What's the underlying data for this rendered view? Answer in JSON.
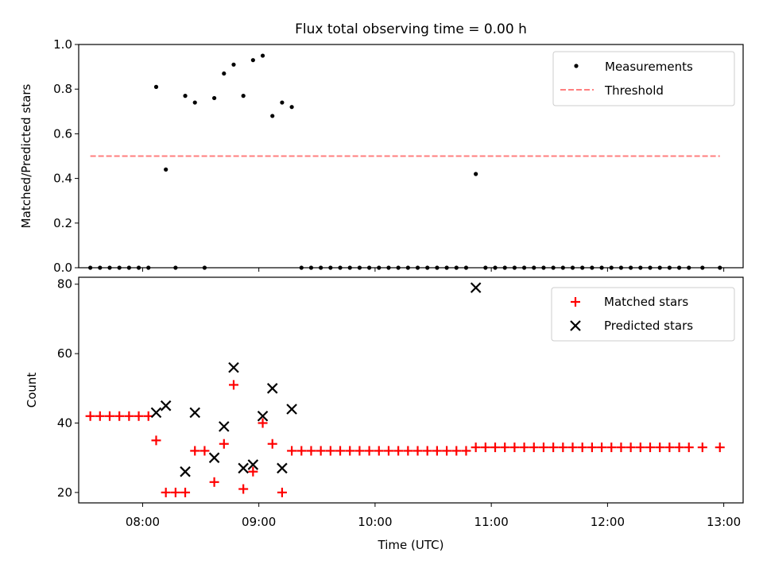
{
  "chart_data": [
    {
      "type": "scatter",
      "title": "Flux total observing time = 0.00 h",
      "xlabel": "",
      "ylabel": "Matched/Predicted stars",
      "xlim": [
        "07:27",
        "13:10"
      ],
      "ylim": [
        0,
        1.0
      ],
      "yticks": [
        0.0,
        0.2,
        0.4,
        0.6,
        0.8,
        1.0
      ],
      "ytick_labels": [
        "0.0",
        "0.2",
        "0.4",
        "0.6",
        "0.8",
        "1.0"
      ],
      "xticks": [
        "08:00",
        "09:00",
        "10:00",
        "11:00",
        "12:00",
        "13:00"
      ],
      "legend_position": "top-right",
      "grid": false,
      "series": [
        {
          "name": "Measurements",
          "marker": "dot",
          "color": "#000000",
          "points": [
            [
              "07:33",
              0
            ],
            [
              "07:38",
              0
            ],
            [
              "07:43",
              0
            ],
            [
              "07:48",
              0
            ],
            [
              "07:53",
              0
            ],
            [
              "07:58",
              0
            ],
            [
              "08:03",
              0
            ],
            [
              "08:07",
              0.81
            ],
            [
              "08:12",
              0.44
            ],
            [
              "08:17",
              0
            ],
            [
              "08:22",
              0.77
            ],
            [
              "08:27",
              0.74
            ],
            [
              "08:32",
              0
            ],
            [
              "08:37",
              0.76
            ],
            [
              "08:42",
              0.87
            ],
            [
              "08:47",
              0.91
            ],
            [
              "08:52",
              0.77
            ],
            [
              "08:57",
              0.93
            ],
            [
              "09:02",
              0.95
            ],
            [
              "09:07",
              0.68
            ],
            [
              "09:12",
              0.74
            ],
            [
              "09:17",
              0.72
            ],
            [
              "09:22",
              0
            ],
            [
              "09:27",
              0
            ],
            [
              "09:32",
              0
            ],
            [
              "09:37",
              0
            ],
            [
              "09:42",
              0
            ],
            [
              "09:47",
              0
            ],
            [
              "09:52",
              0
            ],
            [
              "09:57",
              0
            ],
            [
              "10:02",
              0
            ],
            [
              "10:07",
              0
            ],
            [
              "10:12",
              0
            ],
            [
              "10:17",
              0
            ],
            [
              "10:22",
              0
            ],
            [
              "10:27",
              0
            ],
            [
              "10:32",
              0
            ],
            [
              "10:37",
              0
            ],
            [
              "10:42",
              0
            ],
            [
              "10:47",
              0
            ],
            [
              "10:52",
              0.42
            ],
            [
              "10:57",
              0
            ],
            [
              "11:02",
              0
            ],
            [
              "11:07",
              0
            ],
            [
              "11:12",
              0
            ],
            [
              "11:17",
              0
            ],
            [
              "11:22",
              0
            ],
            [
              "11:27",
              0
            ],
            [
              "11:32",
              0
            ],
            [
              "11:37",
              0
            ],
            [
              "11:42",
              0
            ],
            [
              "11:47",
              0
            ],
            [
              "11:52",
              0
            ],
            [
              "11:57",
              0
            ],
            [
              "12:02",
              0
            ],
            [
              "12:07",
              0
            ],
            [
              "12:12",
              0
            ],
            [
              "12:17",
              0
            ],
            [
              "12:22",
              0
            ],
            [
              "12:27",
              0
            ],
            [
              "12:32",
              0
            ],
            [
              "12:37",
              0
            ],
            [
              "12:42",
              0
            ],
            [
              "12:49",
              0
            ],
            [
              "12:58",
              0
            ]
          ]
        },
        {
          "name": "Threshold",
          "type": "line",
          "dashed": true,
          "color": "#ff7f7f",
          "points": [
            [
              "07:33",
              0.5
            ],
            [
              "12:58",
              0.5
            ]
          ]
        }
      ]
    },
    {
      "type": "scatter",
      "title": "",
      "xlabel": "Time (UTC)",
      "ylabel": "Count",
      "xlim": [
        "07:27",
        "13:10"
      ],
      "ylim": [
        17,
        82
      ],
      "yticks": [
        20,
        40,
        60,
        80
      ],
      "ytick_labels": [
        "20",
        "40",
        "60",
        "80"
      ],
      "xticks": [
        "08:00",
        "09:00",
        "10:00",
        "11:00",
        "12:00",
        "13:00"
      ],
      "legend_position": "top-right",
      "grid": false,
      "series": [
        {
          "name": "Matched stars",
          "marker": "plus",
          "color": "#ff0000",
          "points": [
            [
              "07:33",
              42
            ],
            [
              "07:38",
              42
            ],
            [
              "07:43",
              42
            ],
            [
              "07:48",
              42
            ],
            [
              "07:53",
              42
            ],
            [
              "07:58",
              42
            ],
            [
              "08:03",
              42
            ],
            [
              "08:07",
              35
            ],
            [
              "08:12",
              20
            ],
            [
              "08:17",
              20
            ],
            [
              "08:22",
              20
            ],
            [
              "08:27",
              32
            ],
            [
              "08:32",
              32
            ],
            [
              "08:37",
              23
            ],
            [
              "08:42",
              34
            ],
            [
              "08:47",
              51
            ],
            [
              "08:52",
              21
            ],
            [
              "08:57",
              26
            ],
            [
              "09:02",
              40
            ],
            [
              "09:07",
              34
            ],
            [
              "09:12",
              20
            ],
            [
              "09:17",
              32
            ],
            [
              "09:22",
              32
            ],
            [
              "09:27",
              32
            ],
            [
              "09:32",
              32
            ],
            [
              "09:37",
              32
            ],
            [
              "09:42",
              32
            ],
            [
              "09:47",
              32
            ],
            [
              "09:52",
              32
            ],
            [
              "09:57",
              32
            ],
            [
              "10:02",
              32
            ],
            [
              "10:07",
              32
            ],
            [
              "10:12",
              32
            ],
            [
              "10:17",
              32
            ],
            [
              "10:22",
              32
            ],
            [
              "10:27",
              32
            ],
            [
              "10:32",
              32
            ],
            [
              "10:37",
              32
            ],
            [
              "10:42",
              32
            ],
            [
              "10:47",
              32
            ],
            [
              "10:52",
              33
            ],
            [
              "10:57",
              33
            ],
            [
              "11:02",
              33
            ],
            [
              "11:07",
              33
            ],
            [
              "11:12",
              33
            ],
            [
              "11:17",
              33
            ],
            [
              "11:22",
              33
            ],
            [
              "11:27",
              33
            ],
            [
              "11:32",
              33
            ],
            [
              "11:37",
              33
            ],
            [
              "11:42",
              33
            ],
            [
              "11:47",
              33
            ],
            [
              "11:52",
              33
            ],
            [
              "11:57",
              33
            ],
            [
              "12:02",
              33
            ],
            [
              "12:07",
              33
            ],
            [
              "12:12",
              33
            ],
            [
              "12:17",
              33
            ],
            [
              "12:22",
              33
            ],
            [
              "12:27",
              33
            ],
            [
              "12:32",
              33
            ],
            [
              "12:37",
              33
            ],
            [
              "12:42",
              33
            ],
            [
              "12:49",
              33
            ],
            [
              "12:58",
              33
            ]
          ]
        },
        {
          "name": "Predicted stars",
          "marker": "x",
          "color": "#000000",
          "points": [
            [
              "08:07",
              43
            ],
            [
              "08:12",
              45
            ],
            [
              "08:22",
              26
            ],
            [
              "08:27",
              43
            ],
            [
              "08:37",
              30
            ],
            [
              "08:42",
              39
            ],
            [
              "08:47",
              56
            ],
            [
              "08:52",
              27
            ],
            [
              "08:57",
              28
            ],
            [
              "09:02",
              42
            ],
            [
              "09:07",
              50
            ],
            [
              "09:12",
              27
            ],
            [
              "09:17",
              44
            ],
            [
              "10:52",
              79
            ]
          ]
        }
      ]
    }
  ]
}
